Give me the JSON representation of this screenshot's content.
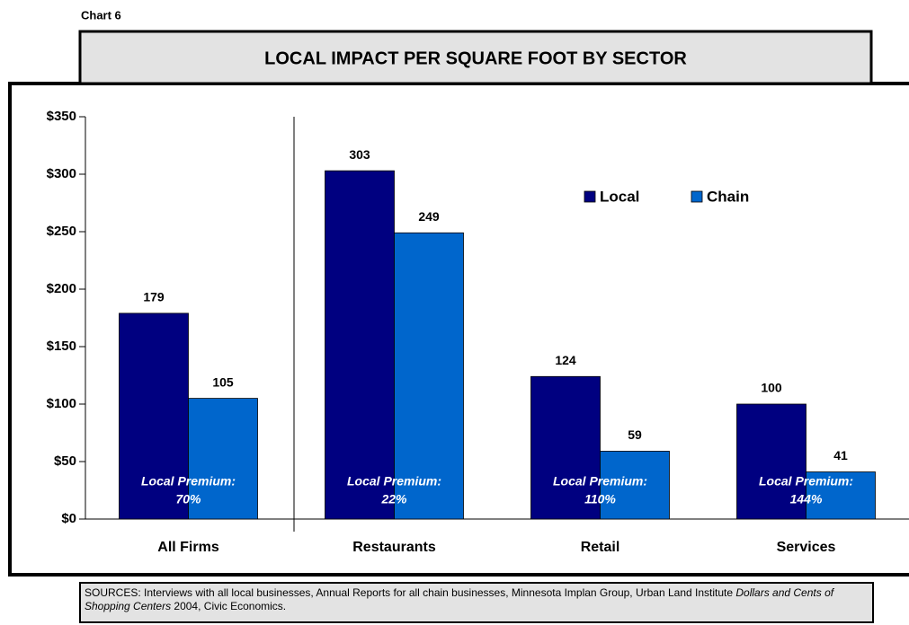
{
  "chart_data": {
    "type": "bar",
    "chart_label": "Chart 6",
    "title": "LOCAL IMPACT PER SQUARE FOOT BY SECTOR",
    "categories": [
      "All Firms",
      "Restaurants",
      "Retail",
      "Services"
    ],
    "series": [
      {
        "name": "Local",
        "color": "#000080",
        "values": [
          179,
          303,
          124,
          100
        ]
      },
      {
        "name": "Chain",
        "color": "#0066cc",
        "values": [
          105,
          249,
          59,
          41
        ]
      }
    ],
    "annotations": [
      {
        "label": "Local Premium:",
        "value": "70%"
      },
      {
        "label": "Local Premium:",
        "value": "22%"
      },
      {
        "label": "Local Premium:",
        "value": "110%"
      },
      {
        "label": "Local Premium:",
        "value": "144%"
      }
    ],
    "ylim": [
      0,
      350
    ],
    "yticks": [
      {
        "value": 0,
        "label": "$0"
      },
      {
        "value": 50,
        "label": "$50"
      },
      {
        "value": 100,
        "label": "$100"
      },
      {
        "value": 150,
        "label": "$150"
      },
      {
        "value": 200,
        "label": "$200"
      },
      {
        "value": 250,
        "label": "$250"
      },
      {
        "value": 300,
        "label": "$300"
      },
      {
        "value": 350,
        "label": "$350"
      }
    ],
    "grid": false,
    "legend": "top-right",
    "source": [
      "SOURCES: Interviews with all local businesses, Annual Reports for all chain businesses, Minnesota Implan Group, Urban Land Institute ",
      "Dollars and Cents of Shopping Centers",
      " 2004, Civic Economics."
    ]
  }
}
